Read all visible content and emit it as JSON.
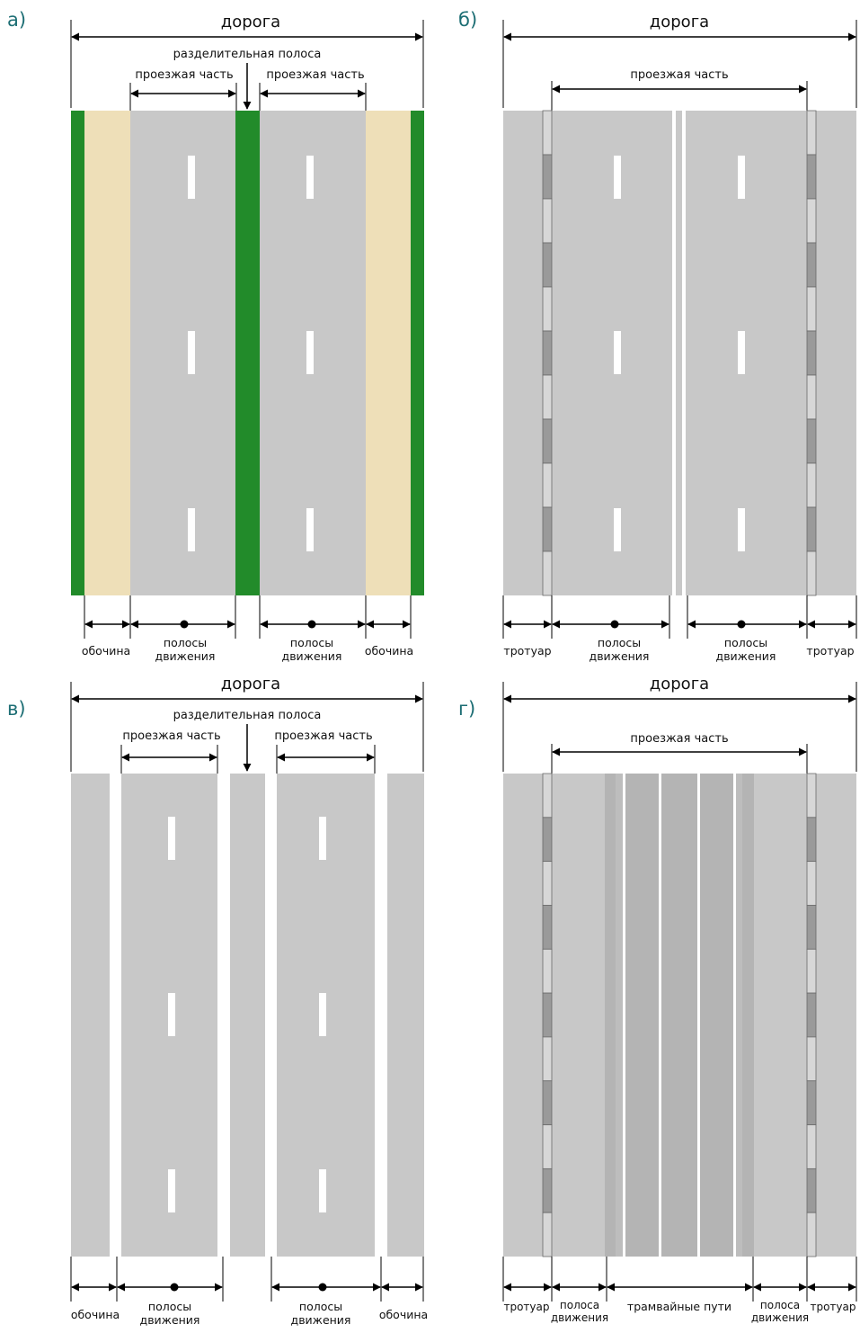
{
  "colors": {
    "asphalt": "#c8c8c8",
    "asphalt_dark": "#b4b4b4",
    "grass": "#228b2a",
    "sand": "#eedfb8",
    "curb_light": "#d7d7d7",
    "curb_dark": "#9a9a9a",
    "marking": "#ffffff",
    "line": "#000000",
    "panel_label": "#1d6e74"
  },
  "panels": {
    "a": {
      "label": "а)",
      "road": "дорога",
      "divider": "разделительная полоса",
      "carriageway_left": "проезжая часть",
      "carriageway_right": "проезжая часть",
      "bottom": {
        "shoulder_left": "обочина",
        "lanes_left_1": "полосы",
        "lanes_left_2": "движения",
        "lanes_right_1": "полосы",
        "lanes_right_2": "движения",
        "shoulder_right": "обочина"
      }
    },
    "b": {
      "label": "б)",
      "road": "дорога",
      "carriageway": "проезжая часть",
      "bottom": {
        "sidewalk_left": "тротуар",
        "lanes_left_1": "полосы",
        "lanes_left_2": "движения",
        "lanes_right_1": "полосы",
        "lanes_right_2": "движения",
        "sidewalk_right": "тротуар"
      }
    },
    "v": {
      "label": "в)",
      "road": "дорога",
      "divider": "разделительная полоса",
      "carriageway_left": "проезжая часть",
      "carriageway_right": "проезжая часть",
      "bottom": {
        "shoulder_left": "обочина",
        "lanes_left_1": "полосы",
        "lanes_left_2": "движения",
        "lanes_right_1": "полосы",
        "lanes_right_2": "движения",
        "shoulder_right": "обочина"
      }
    },
    "g": {
      "label": "г)",
      "road": "дорога",
      "carriageway": "проезжая часть",
      "bottom": {
        "sidewalk_left": "тротуар",
        "lane_left_1": "полоса",
        "lane_left_2": "движения",
        "tram": "трамвайные пути",
        "lane_right_1": "полоса",
        "lane_right_2": "движения",
        "sidewalk_right": "тротуар"
      }
    }
  }
}
